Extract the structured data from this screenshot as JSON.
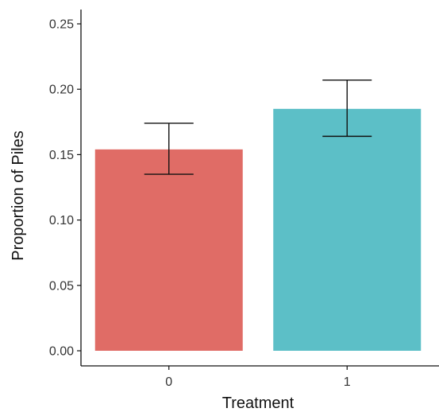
{
  "chart_data": {
    "type": "bar",
    "title": "",
    "xlabel": "Treatment",
    "ylabel": "Proportion of Piles",
    "categories": [
      "0",
      "1"
    ],
    "series": [
      {
        "values": [
          0.154,
          0.185
        ],
        "error_low": [
          0.135,
          0.164
        ],
        "error_high": [
          0.174,
          0.207
        ],
        "colors": [
          "#E06C66",
          "#5CBFC7"
        ]
      }
    ],
    "ylim": [
      0,
      0.26
    ],
    "yticks": [
      "0.00",
      "0.05",
      "0.10",
      "0.15",
      "0.20",
      "0.25"
    ],
    "grid": false,
    "legend": "none"
  }
}
